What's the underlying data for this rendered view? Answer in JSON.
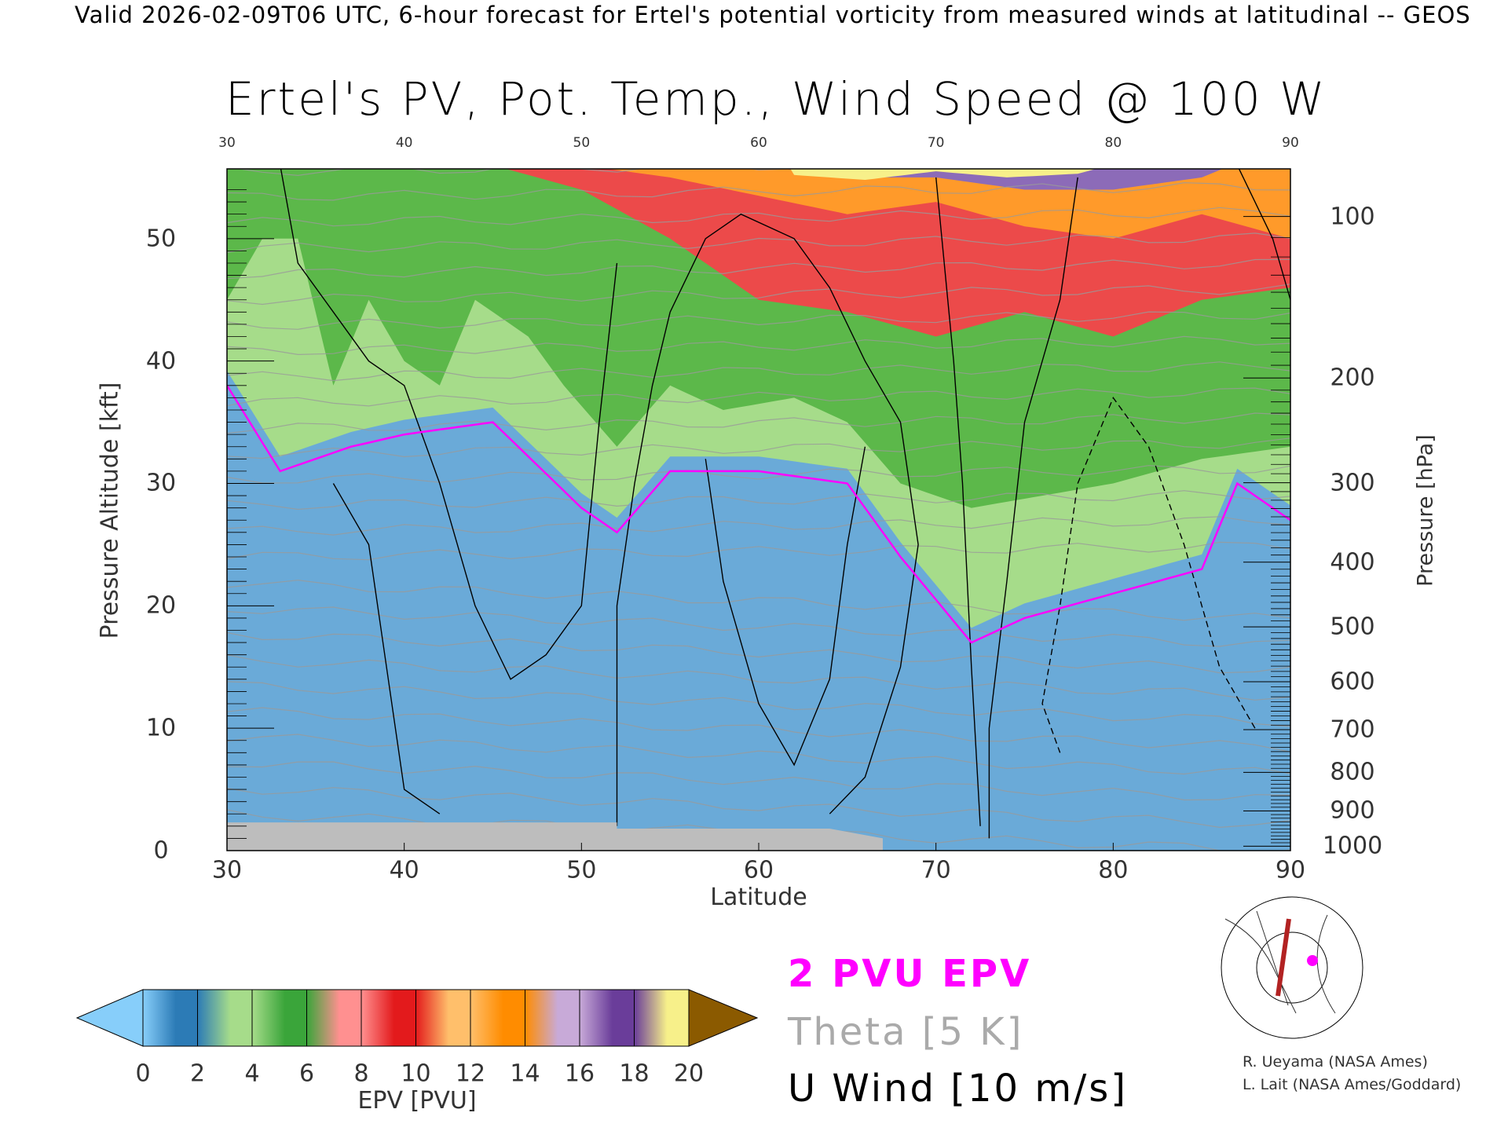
{
  "header": "Valid 2026-02-09T06 UTC, 6-hour forecast for Ertel's potential vorticity from measured winds at latitudinal -- GEOS",
  "chart_data": {
    "type": "heatmap",
    "title": "Ertel's PV, Pot. Temp., Wind Speed @ 100 W",
    "xlabel": "Latitude",
    "ylabel": "Pressure Altitude [kft]",
    "ylabel_right": "Pressure [hPa]",
    "xlim": [
      30,
      90
    ],
    "ylim": [
      0,
      55.7
    ],
    "x_ticks": [
      "30",
      "40",
      "50",
      "60",
      "70",
      "80",
      "90"
    ],
    "y_ticks": [
      "0",
      "10",
      "20",
      "30",
      "40",
      "50"
    ],
    "pressure_ticks": [
      "100",
      "200",
      "300",
      "400",
      "500",
      "600",
      "700",
      "800",
      "900",
      "1000"
    ],
    "two_pvu_boundary_kft": {
      "lat": [
        30,
        33,
        37,
        40,
        45,
        50,
        52,
        55,
        60,
        65,
        68,
        72,
        75,
        80,
        85,
        87,
        90
      ],
      "kft": [
        38,
        31,
        33,
        34,
        35,
        28,
        26,
        31,
        31,
        30,
        24,
        17,
        19,
        21,
        23,
        30,
        27
      ]
    },
    "colorbar": {
      "label": "EPV [PVU]",
      "ticks": [
        "0",
        "2",
        "4",
        "6",
        "8",
        "10",
        "12",
        "14",
        "16",
        "18",
        "20"
      ],
      "colors": [
        "#2c7bb6",
        "#a6dc8a",
        "#3aa53a",
        "#ff9090",
        "#e31a1c",
        "#ffbf6b",
        "#ff8c00",
        "#c8aad8",
        "#6a3d9a",
        "#f7f08a"
      ],
      "under": "#87cefa",
      "over": "#8b5a00"
    },
    "legend": [
      "2 PVU EPV",
      "Theta [5 K]",
      "U Wind [10 m/s]"
    ],
    "legend_colors": [
      "#ff00ff",
      "#aaaaaa",
      "#000000"
    ]
  },
  "credits": [
    "R. Ueyama (NASA Ames)",
    "L. Lait (NASA Ames/Goddard)"
  ]
}
